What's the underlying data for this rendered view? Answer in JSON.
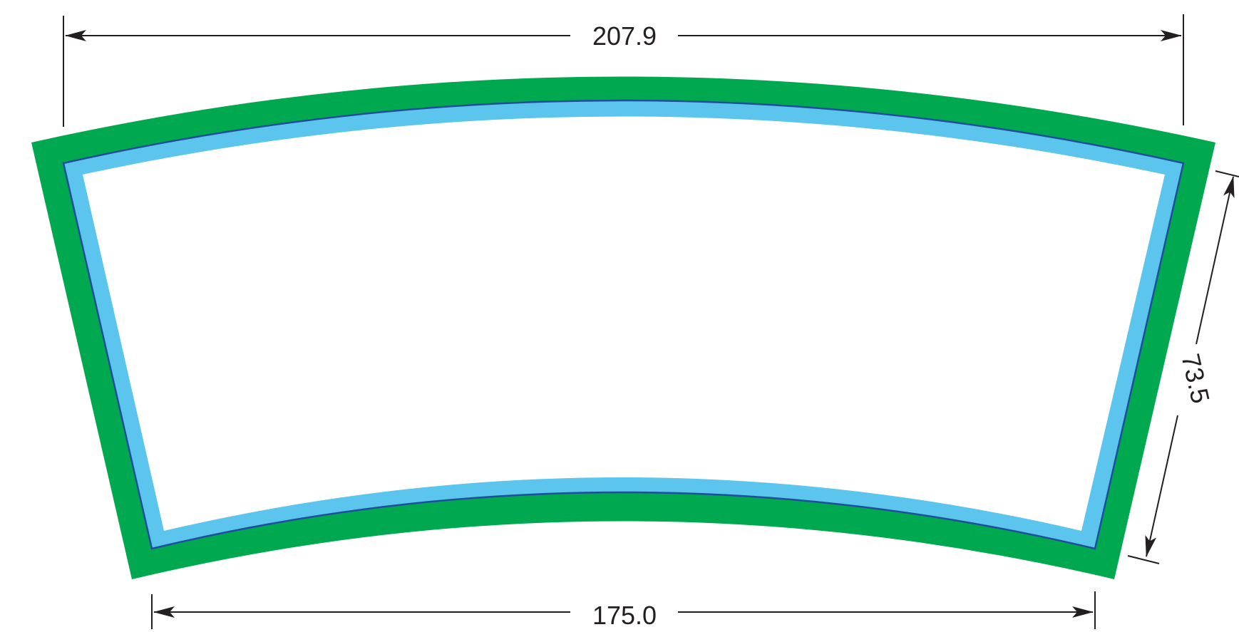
{
  "dimensions": {
    "top_width": "207.9",
    "bottom_width": "175.0",
    "side_height": "73.5"
  },
  "colors": {
    "outer_band": "#00a94f",
    "inner_band": "#5bc5ee",
    "inner_outline": "#1f4e9c",
    "dimension_line": "#231f20"
  }
}
